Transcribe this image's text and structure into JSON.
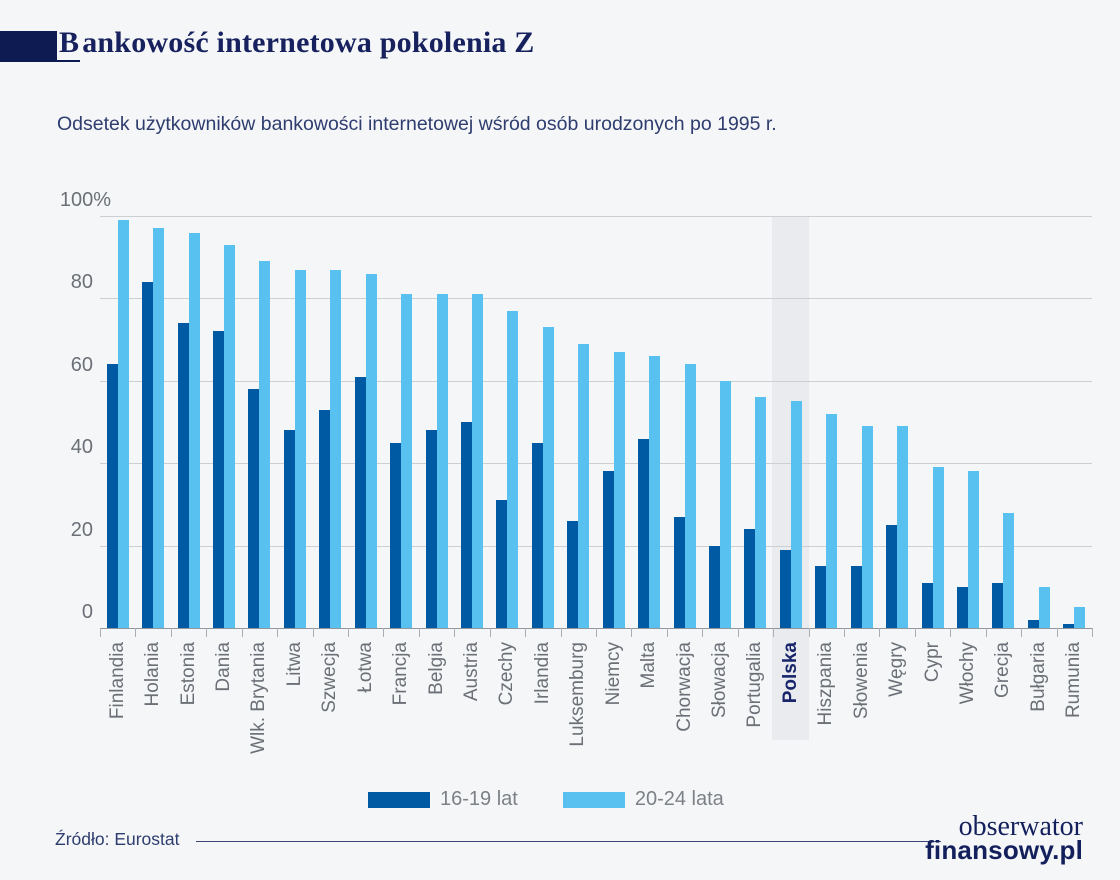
{
  "page": {
    "title": "Bankowość internetowa pokolenia Z",
    "subtitle": "Odsetek użytkowników bankowości internetowej wśród osób urodzonych po 1995 r.",
    "source": "Źródło: Eurostat",
    "logo_line1": "obserwator",
    "logo_line2": "finansowy.pl"
  },
  "colors": {
    "background": "#f4f6f8",
    "title_navy": "#16215d",
    "accent_box": "#0e1a52",
    "series_dark_blue": "#0059a3",
    "series_light_blue": "#58c1ef",
    "gridline": "#cbd0d5",
    "axis_line": "#8f969e",
    "label_gray": "#6b7077",
    "highlight_band": "#e9ebef"
  },
  "legend": [
    {
      "label": "16-19 lat",
      "color": "#0059a3"
    },
    {
      "label": "20-24 lata",
      "color": "#58c1ef"
    }
  ],
  "chart_data": {
    "type": "bar",
    "title": "Bankowość internetowa pokolenia Z",
    "subtitle": "Odsetek użytkowników bankowości internetowej wśród osób urodzonych po 1995 r.",
    "unit": "%",
    "ylim": [
      0,
      100
    ],
    "grid": true,
    "legend_position": "bottom",
    "yticks": [
      {
        "label": "100%",
        "value": 100
      },
      {
        "label": "80",
        "value": 80
      },
      {
        "label": "60",
        "value": 60
      },
      {
        "label": "40",
        "value": 40
      },
      {
        "label": "20",
        "value": 20
      },
      {
        "label": "0",
        "value": 0
      }
    ],
    "categories": [
      "Finlandia",
      "Holania",
      "Estonia",
      "Dania",
      "Wlk. Brytania",
      "Litwa",
      "Szwecja",
      "Łotwa",
      "Francja",
      "Belgia",
      "Austria",
      "Czechy",
      "Irlandia",
      "Luksemburg",
      "Niemcy",
      "Malta",
      "Chorwacja",
      "Słowacja",
      "Portugalia",
      "Polska",
      "Hiszpania",
      "Słowenia",
      "Węgry",
      "Cypr",
      "Włochy",
      "Grecja",
      "Bułgaria",
      "Rumunia"
    ],
    "series": [
      {
        "name": "16-19 lat",
        "color": "#0059a3",
        "values": [
          64,
          84,
          74,
          72,
          58,
          48,
          53,
          61,
          45,
          48,
          50,
          31,
          45,
          26,
          38,
          46,
          27,
          20,
          24,
          19,
          15,
          15,
          25,
          11,
          10,
          11,
          2,
          1
        ]
      },
      {
        "name": "20-24 lata",
        "color": "#58c1ef",
        "values": [
          99,
          97,
          96,
          93,
          89,
          87,
          87,
          86,
          81,
          81,
          81,
          77,
          73,
          69,
          67,
          66,
          64,
          60,
          56,
          55,
          52,
          49,
          49,
          39,
          38,
          28,
          10,
          5
        ]
      }
    ],
    "highlighted_category": "Polska"
  }
}
